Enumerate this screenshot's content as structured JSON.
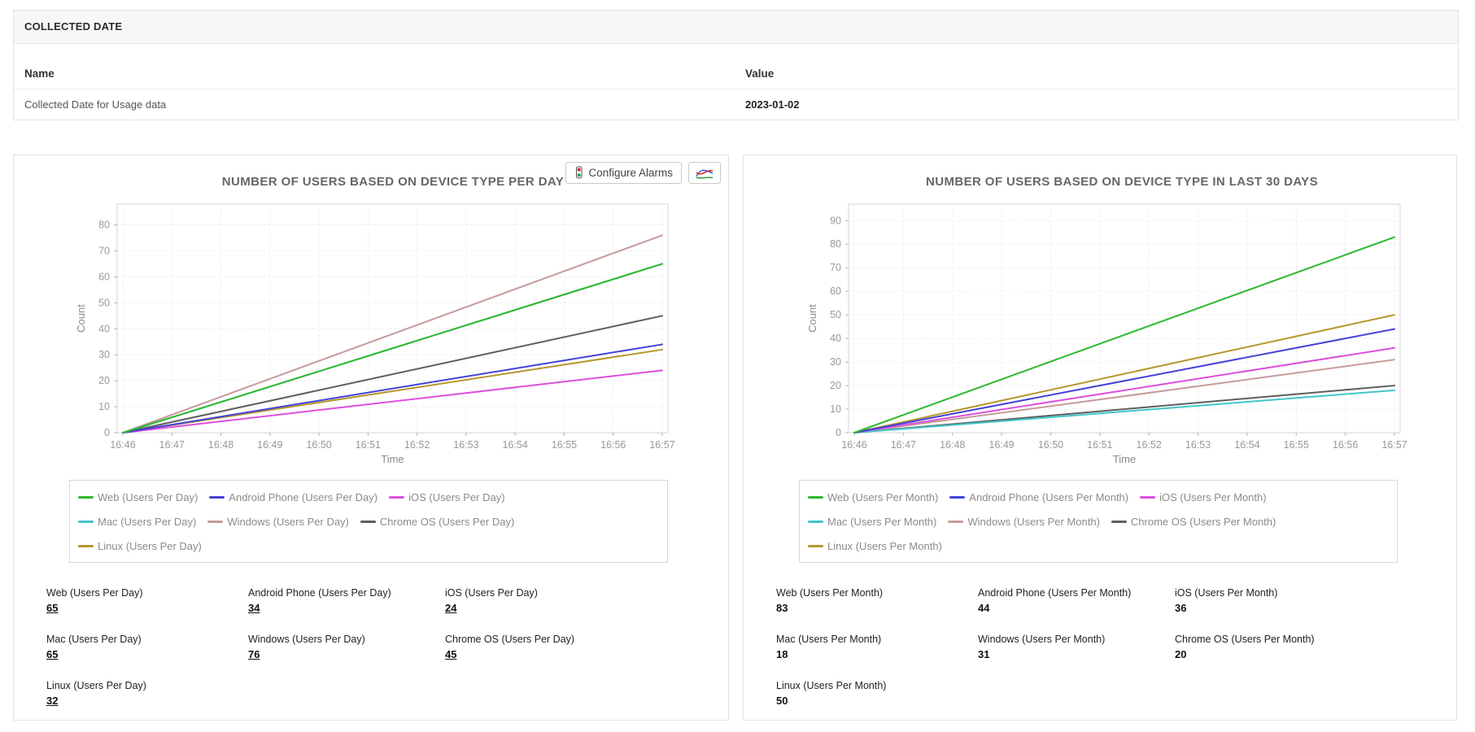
{
  "collected_date": {
    "section_title": "COLLECTED DATE",
    "columns": [
      "Name",
      "Value"
    ],
    "rows": [
      {
        "name": "Collected Date for Usage data",
        "value": "2023-01-02"
      }
    ]
  },
  "toolbar": {
    "configure_alarms_label": "Configure Alarms",
    "icons": [
      "traffic-light-icon",
      "line-chart-icon"
    ]
  },
  "colors": {
    "web": "#2eb82e",
    "android_phone": "#4442d8",
    "ios": "#dd4fdd",
    "mac": "#41c5cc",
    "windows": "#c59b9b",
    "chrome_os": "#5e5e5e",
    "linux": "#b6972c"
  },
  "chart_data": [
    {
      "type": "line",
      "title": "NUMBER OF USERS BASED ON DEVICE TYPE PER DAY",
      "xlabel": "Time",
      "ylabel": "Count",
      "x": [
        "16:46",
        "16:47",
        "16:48",
        "16:49",
        "16:50",
        "16:51",
        "16:52",
        "16:53",
        "16:54",
        "16:55",
        "16:56",
        "16:57"
      ],
      "yticks": [
        0,
        10,
        20,
        30,
        40,
        50,
        60,
        70,
        80
      ],
      "ylim": [
        0,
        88
      ],
      "grid": true,
      "legend_position": "bottom",
      "series": [
        {
          "name": "Web (Users Per Day)",
          "color": "#2eb82e",
          "start": 0,
          "end": 65
        },
        {
          "name": "Android Phone (Users Per Day)",
          "color": "#4442d8",
          "start": 0,
          "end": 34
        },
        {
          "name": "iOS (Users Per Day)",
          "color": "#dd4fdd",
          "start": 0,
          "end": 24
        },
        {
          "name": "Mac (Users Per Day)",
          "color": "#41c5cc",
          "start": 0,
          "end": 65
        },
        {
          "name": "Windows (Users Per Day)",
          "color": "#c59b9b",
          "start": 0,
          "end": 76
        },
        {
          "name": "Chrome OS (Users Per Day)",
          "color": "#5e5e5e",
          "start": 0,
          "end": 45
        },
        {
          "name": "Linux (Users Per Day)",
          "color": "#b6972c",
          "start": 0,
          "end": 32
        }
      ],
      "current_values": [
        {
          "label": "Web (Users Per Day)",
          "value": "65"
        },
        {
          "label": "Android Phone (Users Per Day)",
          "value": "34"
        },
        {
          "label": "iOS (Users Per Day)",
          "value": "24"
        },
        {
          "label": "Mac (Users Per Day)",
          "value": "65"
        },
        {
          "label": "Windows (Users Per Day)",
          "value": "76"
        },
        {
          "label": "Chrome OS (Users Per Day)",
          "value": "45"
        },
        {
          "label": "Linux (Users Per Day)",
          "value": "32"
        }
      ],
      "values_underlined": true
    },
    {
      "type": "line",
      "title": "NUMBER OF USERS BASED ON DEVICE TYPE IN LAST 30 DAYS",
      "xlabel": "Time",
      "ylabel": "Count",
      "x": [
        "16:46",
        "16:47",
        "16:48",
        "16:49",
        "16:50",
        "16:51",
        "16:52",
        "16:53",
        "16:54",
        "16:55",
        "16:56",
        "16:57"
      ],
      "yticks": [
        0,
        10,
        20,
        30,
        40,
        50,
        60,
        70,
        80,
        90
      ],
      "ylim": [
        0,
        97
      ],
      "grid": true,
      "legend_position": "bottom",
      "series": [
        {
          "name": "Web (Users Per Month)",
          "color": "#2eb82e",
          "start": 0,
          "end": 83
        },
        {
          "name": "Android Phone (Users Per Month)",
          "color": "#4442d8",
          "start": 0,
          "end": 44
        },
        {
          "name": "iOS (Users Per Month)",
          "color": "#dd4fdd",
          "start": 0,
          "end": 36
        },
        {
          "name": "Mac (Users Per Month)",
          "color": "#41c5cc",
          "start": 0,
          "end": 18
        },
        {
          "name": "Windows (Users Per Month)",
          "color": "#c59b9b",
          "start": 0,
          "end": 31
        },
        {
          "name": "Chrome OS (Users Per Month)",
          "color": "#5e5e5e",
          "start": 0,
          "end": 20
        },
        {
          "name": "Linux (Users Per Month)",
          "color": "#b6972c",
          "start": 0,
          "end": 50
        }
      ],
      "current_values": [
        {
          "label": "Web (Users Per Month)",
          "value": "83"
        },
        {
          "label": "Android Phone (Users Per Month)",
          "value": "44"
        },
        {
          "label": "iOS (Users Per Month)",
          "value": "36"
        },
        {
          "label": "Mac (Users Per Month)",
          "value": "18"
        },
        {
          "label": "Windows (Users Per Month)",
          "value": "31"
        },
        {
          "label": "Chrome OS (Users Per Month)",
          "value": "20"
        },
        {
          "label": "Linux (Users Per Month)",
          "value": "50"
        }
      ],
      "values_underlined": false
    }
  ]
}
